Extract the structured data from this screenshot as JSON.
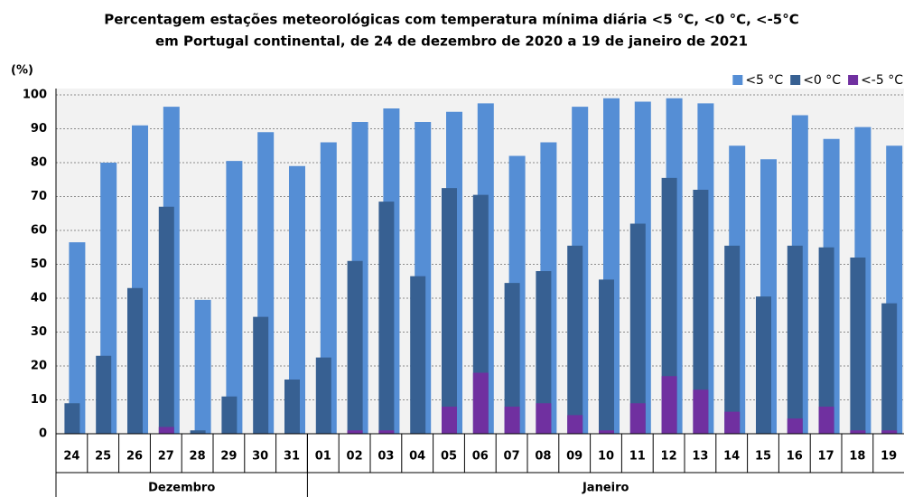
{
  "chart_data": {
    "type": "bar",
    "title": [
      "Percentagem estações meteorológicas com temperatura mínima diária <5 °C, <0 °C, <-5°C",
      "em Portugal continental, de 24 de dezembro de 2020 a 19 de janeiro de 2021"
    ],
    "ylabel": "(%)",
    "groups": [
      {
        "label": "Dezembro",
        "categories": [
          "24",
          "25",
          "26",
          "27",
          "28",
          "29",
          "30",
          "31"
        ]
      },
      {
        "label": "Janeiro",
        "categories": [
          "01",
          "02",
          "03",
          "04",
          "05",
          "06",
          "07",
          "08",
          "09",
          "10",
          "11",
          "12",
          "13",
          "14",
          "15",
          "16",
          "17",
          "18",
          "19"
        ]
      }
    ],
    "series": [
      {
        "name": "<5 °C",
        "color": "#558ed5",
        "values": [
          56.5,
          80,
          91,
          96.5,
          39.5,
          80.5,
          89,
          79,
          86,
          92,
          96,
          92,
          95,
          97.5,
          82,
          86,
          96.5,
          99,
          98,
          99,
          97.5,
          85,
          81,
          94,
          87,
          90.5,
          85
        ]
      },
      {
        "name": "<0 °C",
        "color": "#376092",
        "values": [
          9,
          23,
          43,
          67,
          1,
          11,
          34.5,
          16,
          22.5,
          51,
          68.5,
          46.5,
          72.5,
          70.5,
          44.5,
          48,
          55.5,
          45.5,
          62,
          75.5,
          72,
          55.5,
          40.5,
          55.5,
          55,
          52,
          38.5
        ]
      },
      {
        "name": "<-5 °C",
        "color": "#7030a0",
        "values": [
          0,
          0,
          0,
          2,
          0,
          0,
          0,
          0,
          0,
          1,
          1,
          0,
          8,
          18,
          8,
          9,
          5.5,
          1,
          9,
          17,
          13,
          6.5,
          0,
          4.5,
          8,
          1,
          1
        ]
      }
    ],
    "ylim": [
      0,
      100
    ],
    "yticks": [
      0,
      10,
      20,
      30,
      40,
      50,
      60,
      70,
      80,
      90,
      100
    ],
    "grid": true,
    "legend": "top-right"
  }
}
